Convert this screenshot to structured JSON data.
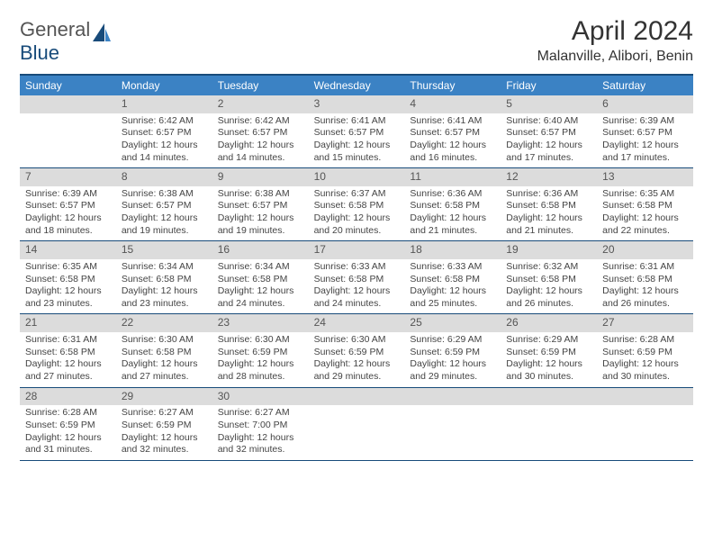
{
  "brand": {
    "g": "General",
    "b": "Blue"
  },
  "title": "April 2024",
  "subtitle": "Malanville, Alibori, Benin",
  "weekdays": [
    "Sunday",
    "Monday",
    "Tuesday",
    "Wednesday",
    "Thursday",
    "Friday",
    "Saturday"
  ],
  "weeks": [
    [
      {
        "n": "",
        "sr": "",
        "ss": "",
        "dl": ""
      },
      {
        "n": "1",
        "sr": "Sunrise: 6:42 AM",
        "ss": "Sunset: 6:57 PM",
        "dl": "Daylight: 12 hours and 14 minutes."
      },
      {
        "n": "2",
        "sr": "Sunrise: 6:42 AM",
        "ss": "Sunset: 6:57 PM",
        "dl": "Daylight: 12 hours and 14 minutes."
      },
      {
        "n": "3",
        "sr": "Sunrise: 6:41 AM",
        "ss": "Sunset: 6:57 PM",
        "dl": "Daylight: 12 hours and 15 minutes."
      },
      {
        "n": "4",
        "sr": "Sunrise: 6:41 AM",
        "ss": "Sunset: 6:57 PM",
        "dl": "Daylight: 12 hours and 16 minutes."
      },
      {
        "n": "5",
        "sr": "Sunrise: 6:40 AM",
        "ss": "Sunset: 6:57 PM",
        "dl": "Daylight: 12 hours and 17 minutes."
      },
      {
        "n": "6",
        "sr": "Sunrise: 6:39 AM",
        "ss": "Sunset: 6:57 PM",
        "dl": "Daylight: 12 hours and 17 minutes."
      }
    ],
    [
      {
        "n": "7",
        "sr": "Sunrise: 6:39 AM",
        "ss": "Sunset: 6:57 PM",
        "dl": "Daylight: 12 hours and 18 minutes."
      },
      {
        "n": "8",
        "sr": "Sunrise: 6:38 AM",
        "ss": "Sunset: 6:57 PM",
        "dl": "Daylight: 12 hours and 19 minutes."
      },
      {
        "n": "9",
        "sr": "Sunrise: 6:38 AM",
        "ss": "Sunset: 6:57 PM",
        "dl": "Daylight: 12 hours and 19 minutes."
      },
      {
        "n": "10",
        "sr": "Sunrise: 6:37 AM",
        "ss": "Sunset: 6:58 PM",
        "dl": "Daylight: 12 hours and 20 minutes."
      },
      {
        "n": "11",
        "sr": "Sunrise: 6:36 AM",
        "ss": "Sunset: 6:58 PM",
        "dl": "Daylight: 12 hours and 21 minutes."
      },
      {
        "n": "12",
        "sr": "Sunrise: 6:36 AM",
        "ss": "Sunset: 6:58 PM",
        "dl": "Daylight: 12 hours and 21 minutes."
      },
      {
        "n": "13",
        "sr": "Sunrise: 6:35 AM",
        "ss": "Sunset: 6:58 PM",
        "dl": "Daylight: 12 hours and 22 minutes."
      }
    ],
    [
      {
        "n": "14",
        "sr": "Sunrise: 6:35 AM",
        "ss": "Sunset: 6:58 PM",
        "dl": "Daylight: 12 hours and 23 minutes."
      },
      {
        "n": "15",
        "sr": "Sunrise: 6:34 AM",
        "ss": "Sunset: 6:58 PM",
        "dl": "Daylight: 12 hours and 23 minutes."
      },
      {
        "n": "16",
        "sr": "Sunrise: 6:34 AM",
        "ss": "Sunset: 6:58 PM",
        "dl": "Daylight: 12 hours and 24 minutes."
      },
      {
        "n": "17",
        "sr": "Sunrise: 6:33 AM",
        "ss": "Sunset: 6:58 PM",
        "dl": "Daylight: 12 hours and 24 minutes."
      },
      {
        "n": "18",
        "sr": "Sunrise: 6:33 AM",
        "ss": "Sunset: 6:58 PM",
        "dl": "Daylight: 12 hours and 25 minutes."
      },
      {
        "n": "19",
        "sr": "Sunrise: 6:32 AM",
        "ss": "Sunset: 6:58 PM",
        "dl": "Daylight: 12 hours and 26 minutes."
      },
      {
        "n": "20",
        "sr": "Sunrise: 6:31 AM",
        "ss": "Sunset: 6:58 PM",
        "dl": "Daylight: 12 hours and 26 minutes."
      }
    ],
    [
      {
        "n": "21",
        "sr": "Sunrise: 6:31 AM",
        "ss": "Sunset: 6:58 PM",
        "dl": "Daylight: 12 hours and 27 minutes."
      },
      {
        "n": "22",
        "sr": "Sunrise: 6:30 AM",
        "ss": "Sunset: 6:58 PM",
        "dl": "Daylight: 12 hours and 27 minutes."
      },
      {
        "n": "23",
        "sr": "Sunrise: 6:30 AM",
        "ss": "Sunset: 6:59 PM",
        "dl": "Daylight: 12 hours and 28 minutes."
      },
      {
        "n": "24",
        "sr": "Sunrise: 6:30 AM",
        "ss": "Sunset: 6:59 PM",
        "dl": "Daylight: 12 hours and 29 minutes."
      },
      {
        "n": "25",
        "sr": "Sunrise: 6:29 AM",
        "ss": "Sunset: 6:59 PM",
        "dl": "Daylight: 12 hours and 29 minutes."
      },
      {
        "n": "26",
        "sr": "Sunrise: 6:29 AM",
        "ss": "Sunset: 6:59 PM",
        "dl": "Daylight: 12 hours and 30 minutes."
      },
      {
        "n": "27",
        "sr": "Sunrise: 6:28 AM",
        "ss": "Sunset: 6:59 PM",
        "dl": "Daylight: 12 hours and 30 minutes."
      }
    ],
    [
      {
        "n": "28",
        "sr": "Sunrise: 6:28 AM",
        "ss": "Sunset: 6:59 PM",
        "dl": "Daylight: 12 hours and 31 minutes."
      },
      {
        "n": "29",
        "sr": "Sunrise: 6:27 AM",
        "ss": "Sunset: 6:59 PM",
        "dl": "Daylight: 12 hours and 32 minutes."
      },
      {
        "n": "30",
        "sr": "Sunrise: 6:27 AM",
        "ss": "Sunset: 7:00 PM",
        "dl": "Daylight: 12 hours and 32 minutes."
      },
      {
        "n": "",
        "sr": "",
        "ss": "",
        "dl": ""
      },
      {
        "n": "",
        "sr": "",
        "ss": "",
        "dl": ""
      },
      {
        "n": "",
        "sr": "",
        "ss": "",
        "dl": ""
      },
      {
        "n": "",
        "sr": "",
        "ss": "",
        "dl": ""
      }
    ]
  ]
}
